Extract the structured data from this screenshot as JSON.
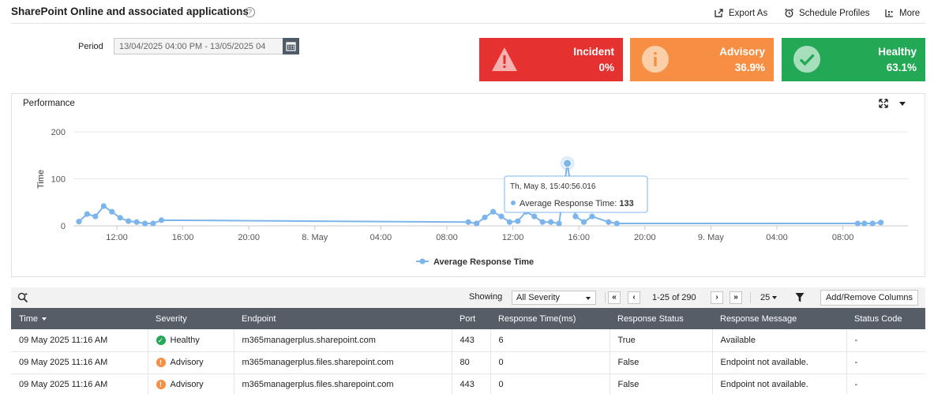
{
  "header": {
    "title": "SharePoint Online and associated applications",
    "help_glyph": "?",
    "actions": [
      {
        "label": "Export As",
        "icon": "export-icon"
      },
      {
        "label": "Schedule Profiles",
        "icon": "alarm-clock-icon"
      },
      {
        "label": "More",
        "icon": "more-icon"
      }
    ]
  },
  "period": {
    "label": "Period",
    "value": "13/04/2025 04:00 PM - 13/05/2025 04"
  },
  "severity_cards": [
    {
      "name": "Incident",
      "percent": "0%",
      "color": "#e5312f",
      "icon": "warning-icon"
    },
    {
      "name": "Advisory",
      "percent": "36.9%",
      "color": "#f68f43",
      "icon": "info-icon"
    },
    {
      "name": "Healthy",
      "percent": "63.1%",
      "color": "#23a955",
      "icon": "check-icon"
    }
  ],
  "performance": {
    "title": "Performance"
  },
  "chart_data": {
    "type": "line",
    "ylabel": "Time",
    "ylim": [
      0,
      200
    ],
    "yticks": [
      0,
      100,
      200
    ],
    "x_tick_labels": [
      "12:00",
      "16:00",
      "20:00",
      "8. May",
      "04:00",
      "08:00",
      "12:00",
      "16:00",
      "20:00",
      "9. May",
      "04:00",
      "08:00"
    ],
    "x_tick_hours": [
      12,
      16,
      20,
      24,
      28,
      32,
      36,
      40,
      44,
      48,
      52,
      56
    ],
    "grid": true,
    "legend_position": "bottom",
    "series": [
      {
        "name": "Average Response Time",
        "color": "#7cb5ec",
        "x_hours": [
          9.7,
          10.2,
          10.7,
          11.2,
          11.7,
          12.2,
          12.7,
          13.2,
          13.7,
          14.2,
          14.7,
          33.3,
          33.8,
          34.3,
          34.8,
          35.3,
          35.8,
          36.3,
          36.8,
          37.3,
          37.8,
          38.3,
          38.8,
          39.3,
          39.8,
          40.3,
          40.8,
          41.8,
          42.3,
          56.9,
          57.3,
          57.8,
          58.3
        ],
        "values": [
          9,
          25,
          20,
          42,
          30,
          17,
          10,
          8,
          5,
          5,
          12,
          8,
          5,
          18,
          30,
          20,
          8,
          10,
          30,
          20,
          8,
          8,
          5,
          133,
          20,
          8,
          20,
          8,
          5,
          5,
          5,
          5,
          7
        ]
      }
    ],
    "tooltip": {
      "date": "Th, May 8, 15:40:56.016",
      "series": "Average Response Time",
      "value": "133"
    }
  },
  "grid": {
    "search_icon": "search-icon",
    "showing_label": "Showing",
    "severity_filter": "All Severity",
    "pagination": {
      "first": "«",
      "prev": "‹",
      "range": "1-25 of 290",
      "next": "›",
      "last": "»",
      "per_page": "25"
    },
    "filter_icon": "funnel-icon",
    "add_remove_label": "Add/Remove Columns",
    "columns": [
      "Time",
      "Severity",
      "Endpoint",
      "Port",
      "Response Time(ms)",
      "Response Status",
      "Response Message",
      "Status Code"
    ],
    "rows": [
      {
        "time": "09 May 2025 11:16 AM",
        "severity": "Healthy",
        "severity_color": "#23a955",
        "endpoint": "m365managerplus.sharepoint.com",
        "port": "443",
        "response_time": "6",
        "status": "True",
        "message": "Available",
        "code": "-"
      },
      {
        "time": "09 May 2025 11:16 AM",
        "severity": "Advisory",
        "severity_color": "#f68f43",
        "endpoint": "m365managerplus.files.sharepoint.com",
        "port": "80",
        "response_time": "0",
        "status": "False",
        "message": "Endpoint not available.",
        "code": "-"
      },
      {
        "time": "09 May 2025 11:16 AM",
        "severity": "Advisory",
        "severity_color": "#f68f43",
        "endpoint": "m365managerplus.files.sharepoint.com",
        "port": "443",
        "response_time": "0",
        "status": "False",
        "message": "Endpoint not available.",
        "code": "-"
      }
    ]
  }
}
